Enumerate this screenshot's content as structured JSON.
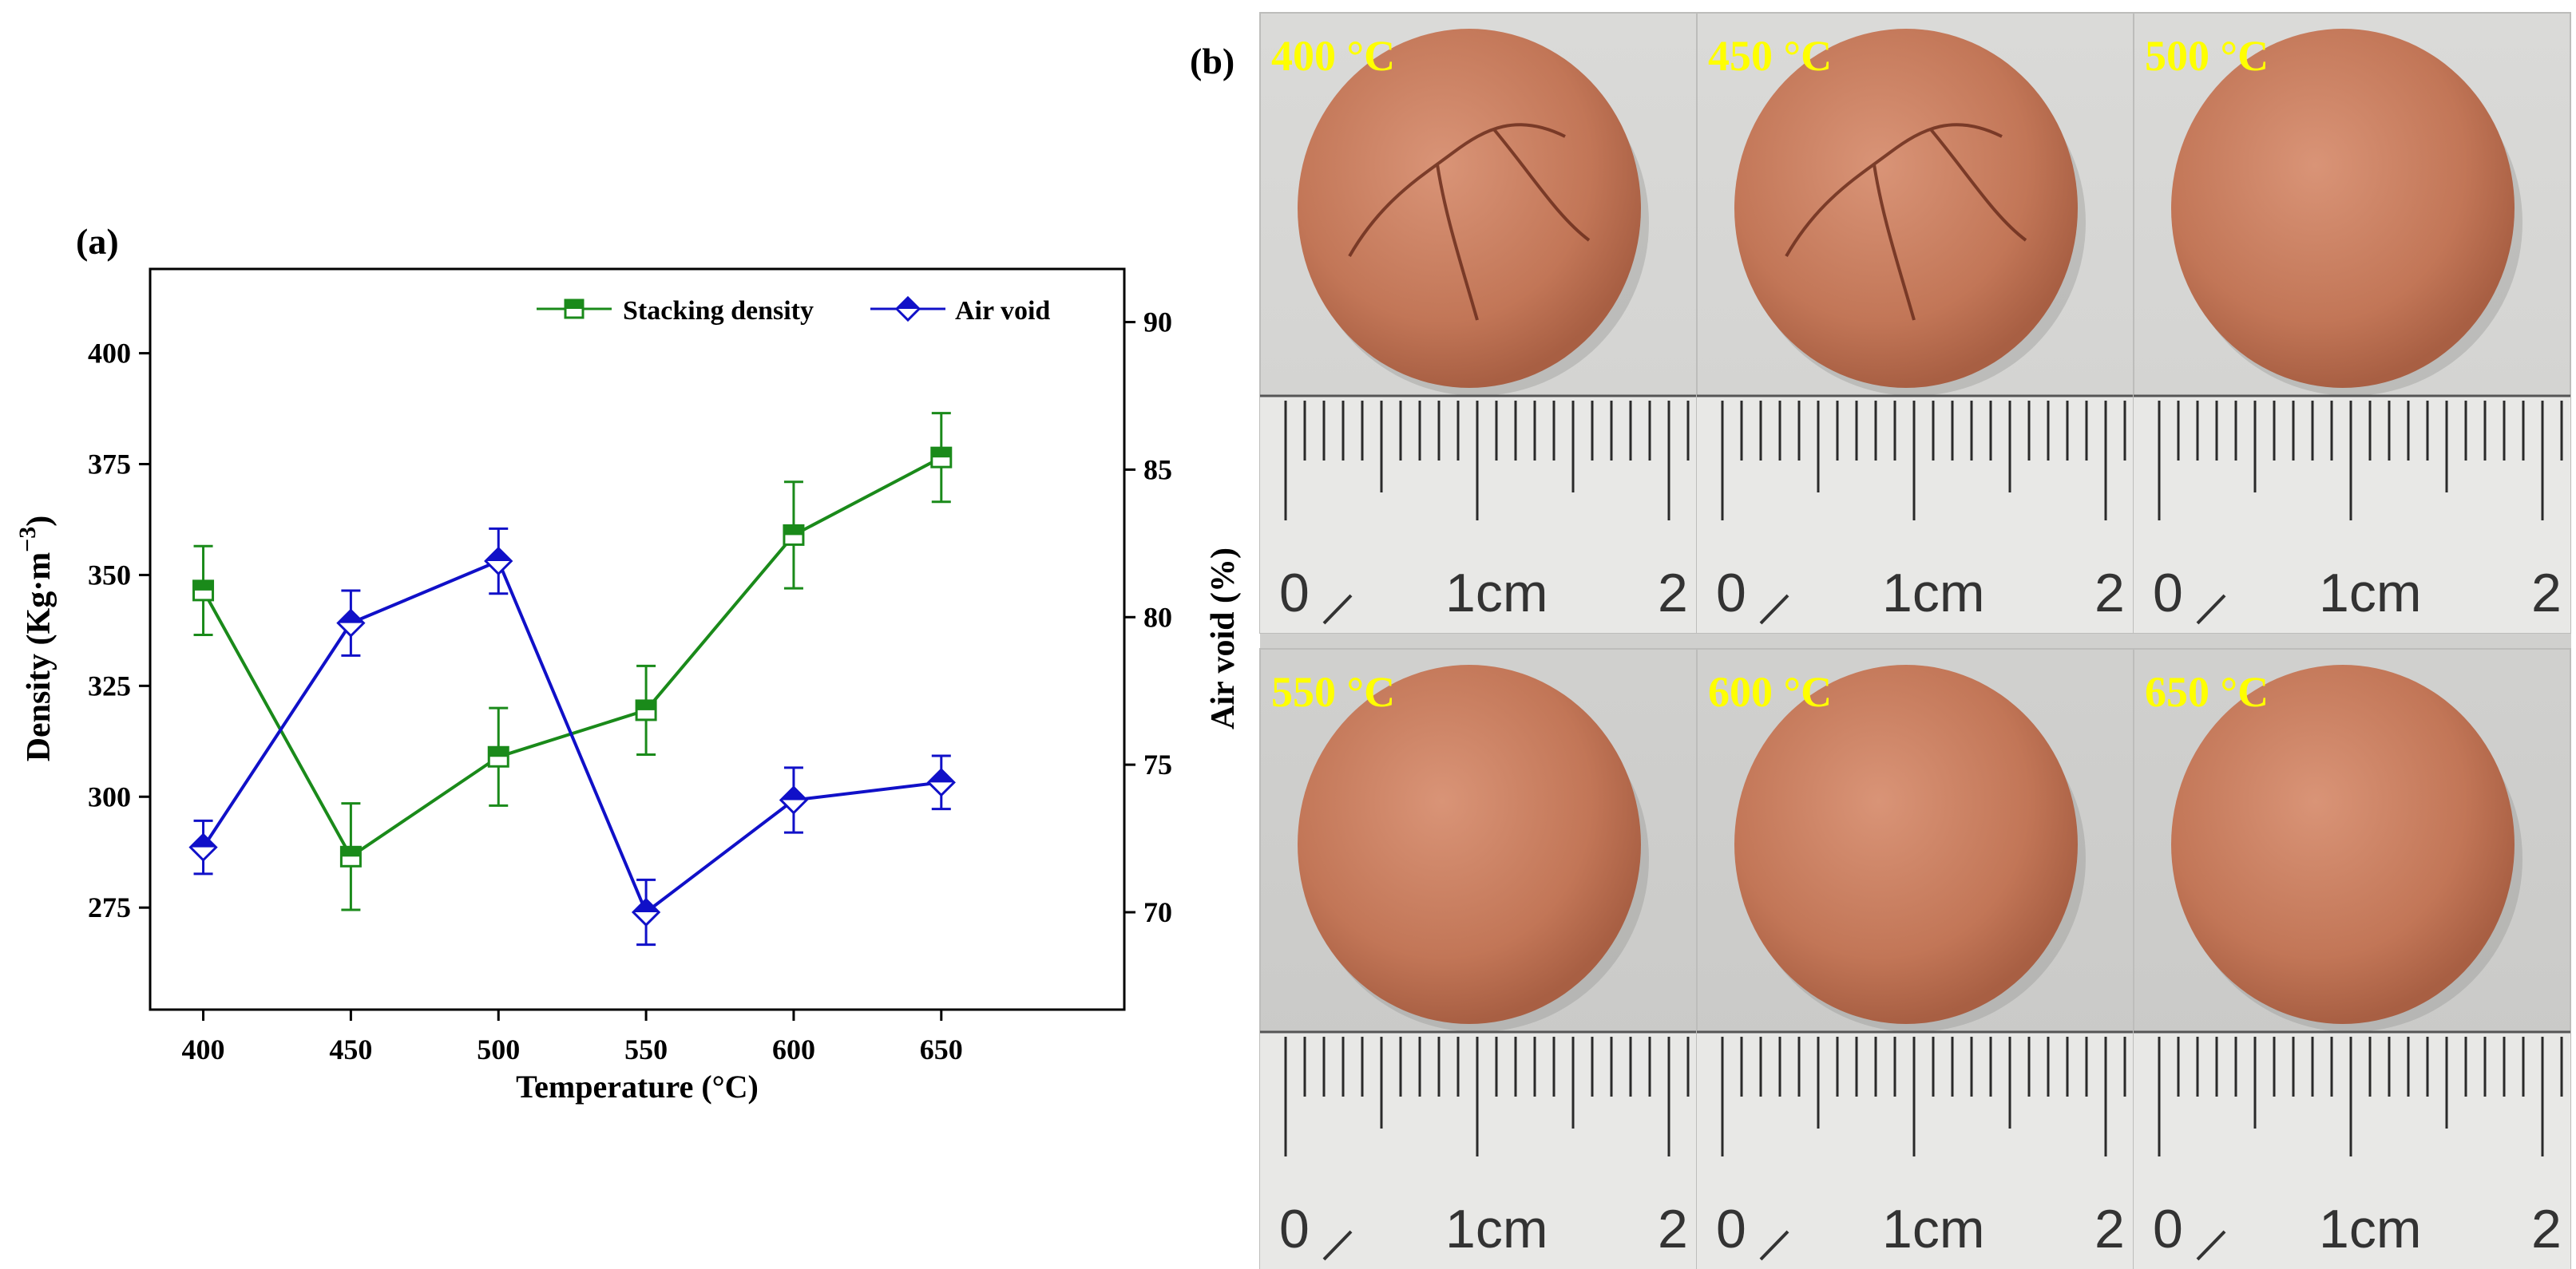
{
  "panel_a": {
    "label": "(a)",
    "chart_data": {
      "type": "line",
      "x": [
        400,
        450,
        500,
        550,
        600,
        650
      ],
      "xlabel": "Temperature (°C)",
      "x_ticks": [
        400,
        450,
        500,
        550,
        600,
        650
      ],
      "xlim": [
        382,
        712
      ],
      "series": [
        {
          "name": "Stacking density",
          "axis": "left",
          "color": "#1a8a1a",
          "marker": "square-half",
          "values": [
            346.5,
            286.5,
            309,
            319.5,
            359,
            376.5
          ],
          "errors": [
            10,
            12,
            11,
            10,
            12,
            10
          ]
        },
        {
          "name": "Air void",
          "axis": "right",
          "color": "#1010c8",
          "marker": "diamond-half",
          "values": [
            72.2,
            79.8,
            81.9,
            70.0,
            73.8,
            74.4
          ],
          "errors": [
            0.9,
            1.1,
            1.1,
            1.1,
            1.1,
            0.9
          ]
        }
      ],
      "y_left": {
        "label_main": "Density (Kg·m",
        "label_sup": "−3",
        "label_close": ")",
        "ticks": [
          275,
          300,
          325,
          350,
          375,
          400
        ],
        "ylim": [
          252,
          419
        ]
      },
      "y_right": {
        "label": "Air void (%)",
        "ticks": [
          70,
          75,
          80,
          85,
          90
        ],
        "ylim": [
          66.7,
          91.8
        ]
      },
      "legend_position": "top-right"
    }
  },
  "panel_b": {
    "label": "(b)",
    "photos": [
      {
        "temp_label": "400 °C",
        "cracked": true
      },
      {
        "temp_label": "450 °C",
        "cracked": true
      },
      {
        "temp_label": "500 °C",
        "cracked": false
      },
      {
        "temp_label": "550 °C",
        "cracked": false
      },
      {
        "temp_label": "600 °C",
        "cracked": false
      },
      {
        "temp_label": "650 °C",
        "cracked": false
      }
    ],
    "ruler": {
      "left_digit": "0",
      "center_label": "1cm",
      "right_digit": "2"
    },
    "colors": {
      "temp_label": "#ffff00",
      "bead": "#c67b5c",
      "background": "#cfcfcd"
    }
  }
}
